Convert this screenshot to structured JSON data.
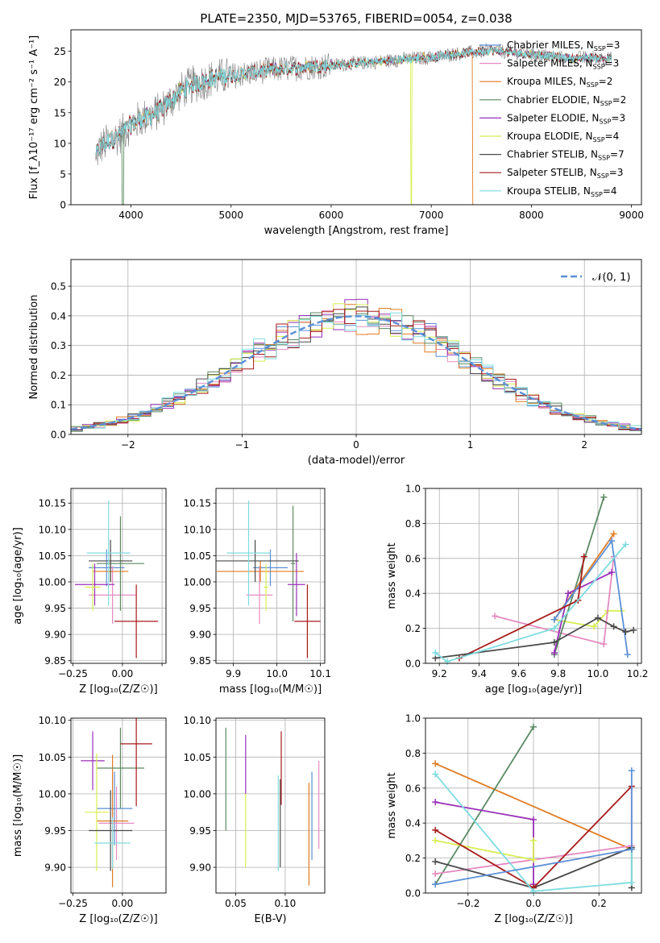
{
  "title": "PLATE=2350, MJD=53765, FIBERID=0054, z=0.038",
  "models": [
    {
      "name": "Chabrier MILES",
      "nssp": 3,
      "color": "#5b8fd6"
    },
    {
      "name": "Salpeter MILES",
      "nssp": 3,
      "color": "#e58ac0"
    },
    {
      "name": "Kroupa MILES",
      "nssp": 2,
      "color": "#e07b22"
    },
    {
      "name": "Chabrier ELODIE",
      "nssp": 2,
      "color": "#5a8a62"
    },
    {
      "name": "Salpeter ELODIE",
      "nssp": 3,
      "color": "#9a2fb8"
    },
    {
      "name": "Kroupa ELODIE",
      "nssp": 4,
      "color": "#d8ee50"
    },
    {
      "name": "Chabrier STELIB",
      "nssp": 7,
      "color": "#4a4a4a"
    },
    {
      "name": "Salpeter STELIB",
      "nssp": 3,
      "color": "#a81a1a"
    },
    {
      "name": "Kroupa STELIB",
      "nssp": 4,
      "color": "#7edce0"
    }
  ],
  "chart_data": [
    {
      "id": "spectrum",
      "type": "line",
      "xlabel": "wavelength [Angstrom, rest frame]",
      "ylabel": "Flux [f_λ10⁻¹⁷ erg cm⁻² s⁻¹ A⁻¹]",
      "xlim": [
        3400,
        9100
      ],
      "ylim": [
        0,
        28.5
      ],
      "xticks": [
        4000,
        5000,
        6000,
        7000,
        8000,
        9000
      ],
      "yticks": [
        0,
        5,
        10,
        15,
        20,
        25
      ],
      "legend": "top-right",
      "data_x_range": [
        3650,
        8800
      ],
      "continuum": {
        "x": [
          3650,
          3700,
          3800,
          3900,
          4000,
          4100,
          4200,
          4300,
          4400,
          4500,
          4600,
          4700,
          4800,
          4900,
          5000,
          5200,
          5400,
          5600,
          5800,
          6000,
          6200,
          6400,
          6600,
          6800,
          7000,
          7200,
          7400,
          7600,
          7800,
          8000,
          8200,
          8400,
          8600,
          8800
        ],
        "y": [
          8,
          9.5,
          10.5,
          11.5,
          13,
          14,
          14.5,
          15.5,
          17,
          18.5,
          19.5,
          20,
          20.5,
          20.8,
          21,
          21.5,
          22,
          22.2,
          22.5,
          22.7,
          23,
          23.2,
          23.5,
          23.8,
          24,
          24.5,
          24.8,
          25.2,
          24.8,
          24.5,
          24.2,
          23.8,
          24,
          23.8
        ]
      },
      "drops": [
        {
          "series": "Kroupa ELODIE",
          "x": 6800,
          "y": 0
        },
        {
          "series": "Kroupa MILES",
          "x": 7420,
          "y": 0
        },
        {
          "series": "Chabrier ELODIE",
          "x": 3920,
          "y": 0
        }
      ]
    },
    {
      "id": "residuals",
      "type": "line",
      "xlabel": "(data-model)/error",
      "ylabel": "Normed distribution",
      "xlim": [
        -2.5,
        2.5
      ],
      "ylim": [
        0,
        0.59
      ],
      "xticks": [
        -2,
        -1,
        0,
        1,
        2
      ],
      "yticks": [
        0,
        0.1,
        0.2,
        0.3,
        0.4,
        0.5
      ],
      "legend_label": "𝒩(0, 1)",
      "legend": "top-right",
      "bin_width": 0.1,
      "gaussian": {
        "mean": 0,
        "sigma": 1
      }
    },
    {
      "id": "age_vs_Z",
      "type": "errorbar",
      "xlabel": "Z [log₁₀(Z/Z☉)]",
      "ylabel": "age  [log₁₀(age/yr)]",
      "xlim": [
        -0.26,
        0.22
      ],
      "ylim": [
        9.845,
        10.178
      ],
      "xticks": [
        -0.25,
        0.0,
        0.2
      ],
      "xtick_labels": [
        "−0.25",
        "0.00",
        ""
      ],
      "yticks": [
        9.85,
        9.9,
        9.95,
        10.0,
        10.05,
        10.1,
        10.15
      ],
      "points": [
        {
          "series": "Chabrier MILES",
          "x": -0.08,
          "xerr": 0.09,
          "y": 10.027,
          "yerr": 0.035
        },
        {
          "series": "Salpeter MILES",
          "x": -0.05,
          "xerr": 0.12,
          "y": 9.975,
          "yerr": 0.055
        },
        {
          "series": "Kroupa MILES",
          "x": -0.06,
          "xerr": 0.09,
          "y": 10.02,
          "yerr": 0.02
        },
        {
          "series": "Chabrier ELODIE",
          "x": -0.01,
          "xerr": 0.12,
          "y": 10.035,
          "yerr": 0.09
        },
        {
          "series": "Salpeter ELODIE",
          "x": -0.14,
          "xerr": 0.1,
          "y": 9.995,
          "yerr": 0.04
        },
        {
          "series": "Kroupa ELODIE",
          "x": -0.15,
          "xerr": 0.04,
          "y": 9.99,
          "yerr": 0.045
        },
        {
          "series": "Chabrier STELIB",
          "x": -0.06,
          "xerr": 0.11,
          "y": 10.04,
          "yerr": 0.04
        },
        {
          "series": "Salpeter STELIB",
          "x": 0.07,
          "xerr": 0.11,
          "y": 9.925,
          "yerr": 0.07
        },
        {
          "series": "Kroupa STELIB",
          "x": -0.07,
          "xerr": 0.11,
          "y": 10.055,
          "yerr": 0.1
        }
      ]
    },
    {
      "id": "age_vs_mass",
      "type": "errorbar",
      "xlabel": "mass [log₁₀(M/M☉)]",
      "ylabel": "",
      "xlim": [
        9.86,
        10.11
      ],
      "ylim": [
        9.845,
        10.178
      ],
      "xticks": [
        9.9,
        10.0,
        10.1
      ],
      "yticks": [
        9.85,
        9.9,
        9.95,
        10.0,
        10.05,
        10.1,
        10.15
      ],
      "points": [
        {
          "series": "Chabrier MILES",
          "x": 9.985,
          "xerr": 0.04,
          "y": 10.027,
          "yerr": 0.035
        },
        {
          "series": "Salpeter MILES",
          "x": 9.96,
          "xerr": 0.03,
          "y": 9.975,
          "yerr": 0.055
        },
        {
          "series": "Kroupa MILES",
          "x": 9.962,
          "xerr": 0.1,
          "y": 10.02,
          "yerr": 0.02
        },
        {
          "series": "Chabrier ELODIE",
          "x": 10.037,
          "xerr": 0.005,
          "y": 10.035,
          "yerr": 0.11
        },
        {
          "series": "Salpeter ELODIE",
          "x": 10.045,
          "xerr": 0.02,
          "y": 9.995,
          "yerr": 0.06
        },
        {
          "series": "Kroupa ELODIE",
          "x": 9.975,
          "xerr": 0.005,
          "y": 9.99,
          "yerr": 0.045
        },
        {
          "series": "Chabrier STELIB",
          "x": 9.95,
          "xerr": 0.1,
          "y": 10.04,
          "yerr": 0.04
        },
        {
          "series": "Salpeter STELIB",
          "x": 10.07,
          "xerr": 0.03,
          "y": 9.925,
          "yerr": 0.07
        },
        {
          "series": "Kroupa STELIB",
          "x": 9.935,
          "xerr": 0.05,
          "y": 10.055,
          "yerr": 0.1
        }
      ]
    },
    {
      "id": "mass_weight_vs_age",
      "type": "line",
      "xlabel": "age  [log₁₀(age/yr)]",
      "ylabel": "mass weight",
      "xlim": [
        9.13,
        10.22
      ],
      "ylim": [
        0,
        1.0
      ],
      "xticks": [
        9.2,
        9.4,
        9.6,
        9.8,
        10.0,
        10.2
      ],
      "yticks": [
        0.0,
        0.2,
        0.4,
        0.6,
        0.8,
        1.0
      ],
      "series": [
        {
          "name": "Kroupa ELODIE",
          "x": [
            9.78,
            9.98,
            10.05,
            10.12
          ],
          "y": [
            0.25,
            0.21,
            0.3,
            0.3
          ]
        },
        {
          "name": "Salpeter MILES",
          "x": [
            9.48,
            10.03,
            10.08
          ],
          "y": [
            0.27,
            0.11,
            0.61
          ]
        },
        {
          "name": "Chabrier ELODIE",
          "x": [
            9.78,
            10.03
          ],
          "y": [
            0.05,
            0.95
          ]
        },
        {
          "name": "Kroupa MILES",
          "x": [
            9.78,
            10.08
          ],
          "y": [
            0.25,
            0.74
          ]
        },
        {
          "name": "Salpeter ELODIE",
          "x": [
            9.78,
            9.85,
            10.07
          ],
          "y": [
            0.06,
            0.4,
            0.52
          ]
        },
        {
          "name": "Chabrier MILES",
          "x": [
            9.78,
            10.07,
            10.15
          ],
          "y": [
            0.25,
            0.7,
            0.05
          ]
        },
        {
          "name": "Salpeter STELIB",
          "x": [
            9.3,
            9.9,
            9.93
          ],
          "y": [
            0.03,
            0.36,
            0.61
          ]
        },
        {
          "name": "Chabrier STELIB",
          "x": [
            9.18,
            9.78,
            10.0,
            10.08,
            10.14,
            10.18
          ],
          "y": [
            0.03,
            0.12,
            0.26,
            0.21,
            0.18,
            0.19
          ]
        },
        {
          "name": "Kroupa STELIB",
          "x": [
            9.18,
            9.24,
            9.78,
            10.14
          ],
          "y": [
            0.06,
            0.01,
            0.2,
            0.68
          ]
        }
      ]
    },
    {
      "id": "mass_vs_Z",
      "type": "errorbar",
      "xlabel": "Z [log₁₀(Z/Z☉)]",
      "ylabel": "mass [log₁₀(M/M☉)]",
      "xlim": [
        -0.26,
        0.22
      ],
      "ylim": [
        9.865,
        10.103
      ],
      "xticks": [
        -0.25,
        0.0
      ],
      "xtick_labels": [
        "−0.25",
        "0.00"
      ],
      "yticks": [
        9.9,
        9.95,
        10.0,
        10.05,
        10.1
      ],
      "points": [
        {
          "series": "Chabrier MILES",
          "x": -0.04,
          "xerr": 0.09,
          "y": 9.98,
          "yerr": 0.05
        },
        {
          "series": "Salpeter MILES",
          "x": -0.03,
          "xerr": 0.09,
          "y": 9.96,
          "yerr": 0.05
        },
        {
          "series": "Kroupa MILES",
          "x": -0.05,
          "xerr": 0.08,
          "y": 9.963,
          "yerr": 0.09
        },
        {
          "series": "Chabrier ELODIE",
          "x": -0.01,
          "xerr": 0.12,
          "y": 10.035,
          "yerr": 0.055
        },
        {
          "series": "Salpeter ELODIE",
          "x": -0.15,
          "xerr": 0.06,
          "y": 10.045,
          "yerr": 0.04
        },
        {
          "series": "Kroupa ELODIE",
          "x": -0.13,
          "xerr": 0.06,
          "y": 9.975,
          "yerr": 0.08
        },
        {
          "series": "Chabrier STELIB",
          "x": -0.06,
          "xerr": 0.11,
          "y": 9.95,
          "yerr": 0.055
        },
        {
          "series": "Salpeter STELIB",
          "x": 0.07,
          "xerr": 0.08,
          "y": 10.068,
          "yerr": 0.085
        },
        {
          "series": "Kroupa STELIB",
          "x": -0.05,
          "xerr": 0.09,
          "y": 9.933,
          "yerr": 0.035
        }
      ]
    },
    {
      "id": "mass_vs_ebv",
      "type": "errorbar",
      "xlabel": "E(B-V)",
      "ylabel": "",
      "xlim": [
        0.03,
        0.14
      ],
      "ylim": [
        9.865,
        10.103
      ],
      "xticks": [
        0.05,
        0.1
      ],
      "yticks": [
        9.9,
        9.95,
        10.0,
        10.05,
        10.1
      ],
      "points": [
        {
          "series": "Chabrier MILES",
          "x": 0.127,
          "xerr": 0,
          "y": 9.97,
          "yerr": 0.06
        },
        {
          "series": "Salpeter MILES",
          "x": 0.134,
          "xerr": 0,
          "y": 9.985,
          "yerr": 0.06
        },
        {
          "series": "Kroupa MILES",
          "x": 0.124,
          "xerr": 0,
          "y": 9.945,
          "yerr": 0.07
        },
        {
          "series": "Chabrier ELODIE",
          "x": 0.04,
          "xerr": 0,
          "y": 10.02,
          "yerr": 0.07
        },
        {
          "series": "Salpeter ELODIE",
          "x": 0.06,
          "xerr": 0,
          "y": 10.04,
          "yerr": 0.04
        },
        {
          "series": "Kroupa ELODIE",
          "x": 0.06,
          "xerr": 0,
          "y": 9.95,
          "yerr": 0.05
        },
        {
          "series": "Chabrier STELIB",
          "x": 0.095,
          "xerr": 0,
          "y": 9.96,
          "yerr": 0.06
        },
        {
          "series": "Salpeter STELIB",
          "x": 0.096,
          "xerr": 0,
          "y": 10.035,
          "yerr": 0.05
        },
        {
          "series": "Kroupa STELIB",
          "x": 0.093,
          "xerr": 0,
          "y": 9.96,
          "yerr": 0.065
        }
      ]
    },
    {
      "id": "mass_weight_vs_Z",
      "type": "line",
      "xlabel": "Z [log₁₀(Z/Z☉)]",
      "ylabel": "mass weight",
      "xlim": [
        -0.33,
        0.33
      ],
      "ylim": [
        0,
        1.0
      ],
      "xticks": [
        -0.2,
        0.0,
        0.2
      ],
      "yticks": [
        0.0,
        0.2,
        0.4,
        0.6,
        0.8,
        1.0
      ],
      "series": [
        {
          "name": "Kroupa MILES",
          "x": [
            -0.3,
            0.3
          ],
          "y": [
            0.74,
            0.25
          ]
        },
        {
          "name": "Chabrier ELODIE",
          "x": [
            -0.3,
            0.0
          ],
          "y": [
            0.05,
            0.95
          ]
        },
        {
          "name": "Salpeter ELODIE",
          "x": [
            -0.3,
            0.0,
            0.0
          ],
          "y": [
            0.52,
            0.42,
            0.05
          ]
        },
        {
          "name": "Salpeter MILES",
          "x": [
            -0.3,
            0.3,
            0.3
          ],
          "y": [
            0.11,
            0.27,
            0.61
          ]
        },
        {
          "name": "Kroupa ELODIE",
          "x": [
            -0.3,
            0.0,
            0.0
          ],
          "y": [
            0.3,
            0.19,
            0.3
          ]
        },
        {
          "name": "Chabrier STELIB",
          "x": [
            -0.3,
            0.0,
            0.3,
            0.3
          ],
          "y": [
            0.18,
            0.03,
            0.26,
            0.03
          ]
        },
        {
          "name": "Salpeter STELIB",
          "x": [
            -0.3,
            0.0,
            0.3
          ],
          "y": [
            0.36,
            0.03,
            0.61
          ]
        },
        {
          "name": "Kroupa STELIB",
          "x": [
            -0.3,
            0.0,
            0.3,
            0.3
          ],
          "y": [
            0.68,
            0.01,
            0.06,
            0.25
          ]
        },
        {
          "name": "Chabrier MILES",
          "x": [
            -0.3,
            0.3,
            0.3
          ],
          "y": [
            0.05,
            0.25,
            0.7
          ]
        }
      ]
    }
  ]
}
